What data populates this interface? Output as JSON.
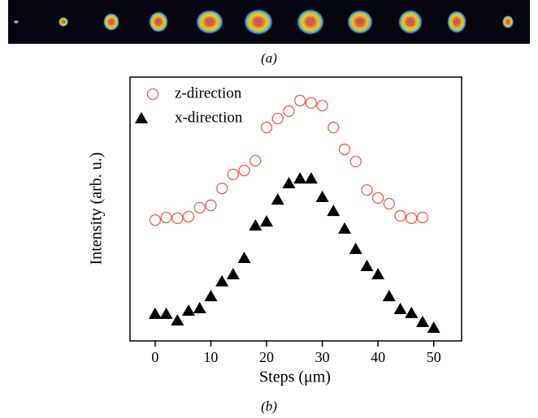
{
  "captions": [
    "(a)",
    "(b)"
  ],
  "chart_data": {
    "type": "scatter",
    "x_label": "Steps (μm)",
    "y_label": "Intensity (arb. u.)",
    "x": [
      0,
      2,
      4,
      6,
      8,
      10,
      12,
      14,
      16,
      18,
      20,
      22,
      24,
      26,
      28,
      30,
      32,
      34,
      36,
      38,
      40,
      42,
      44,
      46,
      48,
      50
    ],
    "series": [
      {
        "name": "z-direction",
        "marker": "open-circle",
        "color": "#e8604c",
        "values": [
          45.8,
          46.8,
          46.5,
          47.1,
          50.5,
          51.4,
          57.8,
          63.1,
          64.6,
          68.3,
          80.9,
          84.3,
          87.1,
          91.1,
          90.2,
          89.2,
          80.9,
          72.6,
          68.0,
          57.2,
          54.2,
          52.0,
          47.4,
          46.5,
          46.8,
          null
        ]
      },
      {
        "name": "x-direction",
        "marker": "filled-triangle",
        "color": "#000000",
        "values": [
          10.2,
          10.2,
          7.7,
          11.4,
          12.3,
          16.9,
          22.5,
          25.2,
          31.4,
          43.7,
          45.2,
          53.5,
          59.7,
          61.5,
          61.5,
          54.5,
          49.2,
          42.5,
          34.8,
          28.3,
          25.2,
          16.9,
          12.0,
          10.5,
          7.1,
          4.9
        ]
      }
    ],
    "xlim": [
      -4.5,
      55
    ],
    "xticks": [
      0,
      10,
      20,
      30,
      40,
      50
    ],
    "ylim": [
      0,
      100
    ],
    "legend": "upper left"
  }
}
